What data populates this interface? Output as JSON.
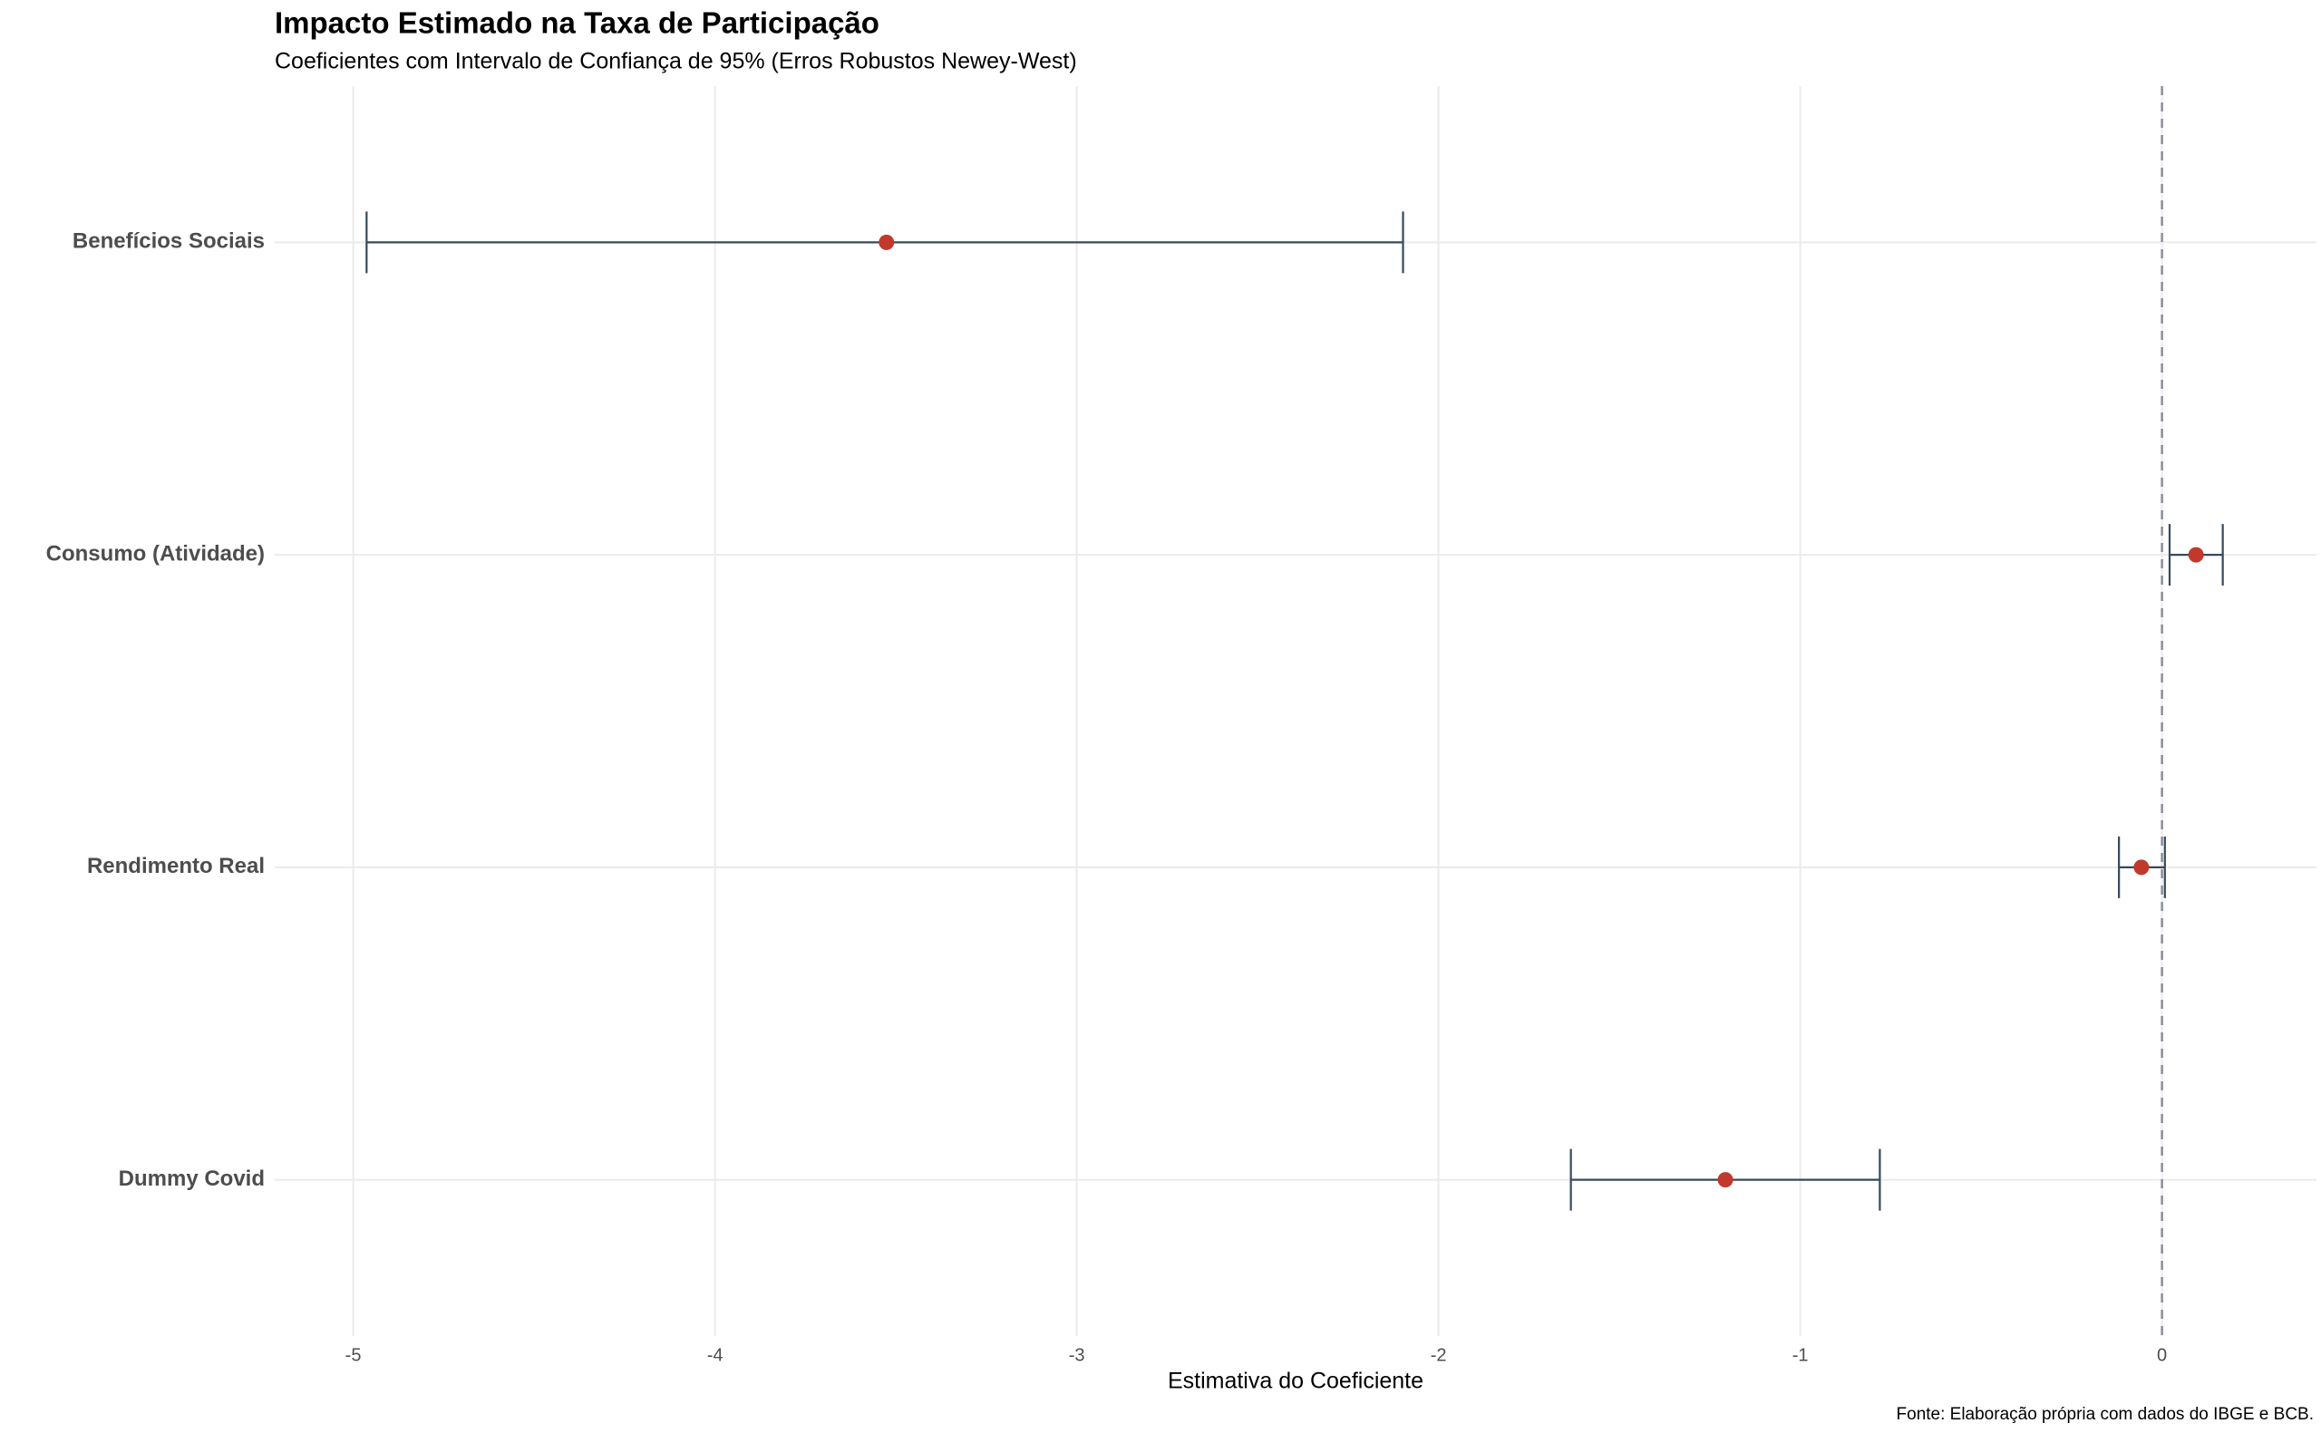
{
  "chart_data": {
    "type": "errorbar",
    "title": "Impacto Estimado na Taxa de Participação",
    "subtitle": "Coeficientes com Intervalo de Confiança de 95% (Erros Robustos Newey-West)",
    "x_label": "Estimativa do Coeficiente",
    "caption": "Fonte: Elaboração própria com dados do IBGE e BCB.",
    "categories": [
      "Benefícios Sociais",
      "Consumo (Atividade)",
      "Rendimento Real",
      "Dummy Covid"
    ],
    "values": [
      -3.526,
      0.094,
      -0.057,
      -1.207
    ],
    "lower": [
      -4.963,
      0.021,
      -0.119,
      -1.634
    ],
    "upper": [
      -2.098,
      0.168,
      0.008,
      -0.78
    ],
    "point_color": "#c0392b",
    "bar_color": "#34495e",
    "reference_line": 0,
    "xlim": [
      -5.217,
      0.427
    ],
    "xticks": [
      -5,
      -4,
      -3,
      -2,
      -1,
      0
    ],
    "grid": true
  }
}
